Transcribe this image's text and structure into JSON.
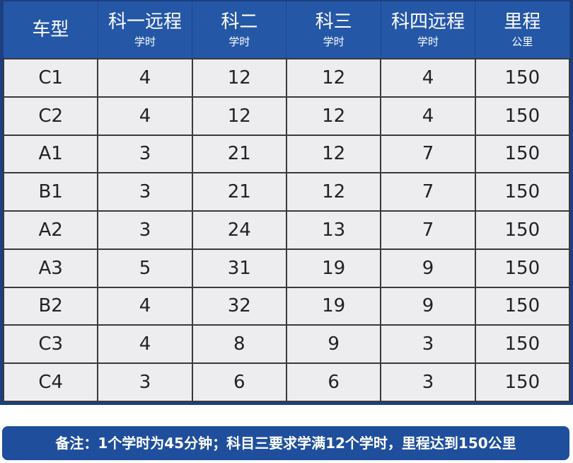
{
  "table": {
    "headers": [
      {
        "main": "车型",
        "sub": ""
      },
      {
        "main": "科一远程",
        "sub": "学时"
      },
      {
        "main": "科二",
        "sub": "学时"
      },
      {
        "main": "科三",
        "sub": "学时"
      },
      {
        "main": "科四远程",
        "sub": "学时"
      },
      {
        "main": "里程",
        "sub": "公里"
      }
    ],
    "rows": [
      [
        "C1",
        "4",
        "12",
        "12",
        "4",
        "150"
      ],
      [
        "C2",
        "4",
        "12",
        "12",
        "4",
        "150"
      ],
      [
        "A1",
        "3",
        "21",
        "12",
        "7",
        "150"
      ],
      [
        "B1",
        "3",
        "21",
        "12",
        "7",
        "150"
      ],
      [
        "A2",
        "3",
        "24",
        "13",
        "7",
        "150"
      ],
      [
        "A3",
        "5",
        "31",
        "19",
        "9",
        "150"
      ],
      [
        "B2",
        "4",
        "32",
        "19",
        "9",
        "150"
      ],
      [
        "C3",
        "4",
        "8",
        "9",
        "3",
        "150"
      ],
      [
        "C4",
        "3",
        "6",
        "6",
        "3",
        "150"
      ]
    ]
  },
  "note": "备注：1个学时为45分钟；科目三要求学满12个学时，里程达到150公里",
  "colors": {
    "header": "#2557a7",
    "border": "#1c3f80",
    "cell": "#ededef",
    "note": "#1f4f9c"
  }
}
